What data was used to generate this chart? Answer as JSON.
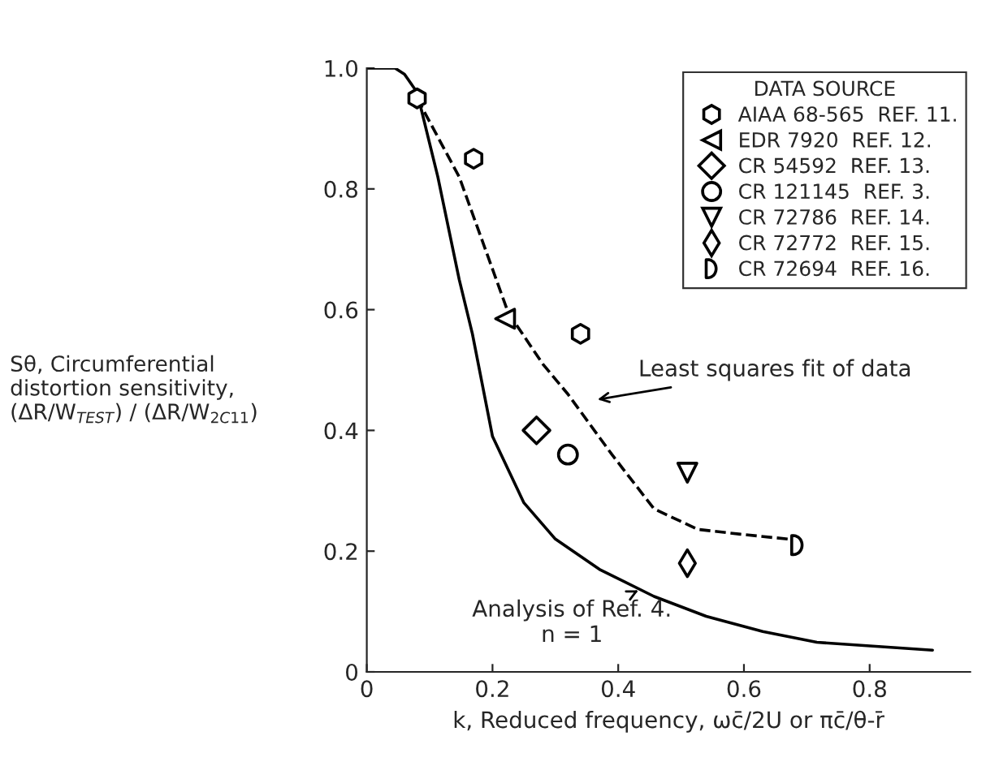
{
  "chart_data": {
    "type": "scatter",
    "xlabel": "k, Reduced frequency, ωc̄/2U or πc̄/θ-r̄",
    "ylabel": "Sθ, Circumferential\ndistortion sensitivity,\n(ΔR/W$_{TEST}$) / (ΔR/W$_{2C11}$)",
    "legend_title": "DATA SOURCE",
    "legend": "top right",
    "grid": false,
    "xlim": [
      0,
      0.96
    ],
    "xticks": [
      0,
      0.2,
      0.4,
      0.6,
      0.8
    ],
    "ylim": [
      0,
      1.0
    ],
    "yticks": [
      0,
      0.2,
      0.4,
      0.6,
      0.8,
      {
        "value": 1.0,
        "label": "1.0"
      }
    ],
    "series": [
      {
        "name": "AIAA 68-565  REF. 11.",
        "color": "#000000",
        "x": [
          0.08,
          0.17,
          0.34
        ],
        "values": [
          0.95,
          0.85,
          0.56
        ]
      },
      {
        "name": "EDR 7920  REF. 12.",
        "color": "#000000",
        "x": [
          0.22
        ],
        "values": [
          0.585
        ]
      },
      {
        "name": "CR 54592  REF. 13.",
        "color": "#000000",
        "x": [
          0.27
        ],
        "values": [
          0.4
        ]
      },
      {
        "name": "CR 121145  REF. 3.",
        "color": "#000000",
        "x": [
          0.32
        ],
        "values": [
          0.36
        ]
      },
      {
        "name": "CR 72786  REF. 14.",
        "color": "#000000",
        "x": [
          0.51
        ],
        "values": [
          0.33
        ]
      },
      {
        "name": "CR 72772  REF. 15.",
        "color": "#000000",
        "x": [
          0.51
        ],
        "values": [
          0.18
        ]
      },
      {
        "name": "CR 72694  REF. 16.",
        "color": "#000000",
        "x": [
          0.685
        ],
        "values": [
          0.21
        ]
      },
      {
        "type": "line",
        "line_style": "dashed",
        "color": "#000000",
        "x": [
          0.08,
          0.147,
          0.225,
          0.28,
          0.32,
          0.39,
          0.457,
          0.527,
          0.595,
          0.67
        ],
        "values": [
          0.95,
          0.82,
          0.595,
          0.51,
          0.46,
          0.36,
          0.27,
          0.236,
          0.228,
          0.22
        ]
      },
      {
        "type": "line",
        "line_style": "solid",
        "color": "#000000",
        "x": [
          0,
          0.045,
          0.06,
          0.08,
          0.113,
          0.147,
          0.168,
          0.2,
          0.25,
          0.3,
          0.37,
          0.457,
          0.54,
          0.63,
          0.716,
          0.9
        ],
        "values": [
          1.0,
          1.0,
          0.99,
          0.96,
          0.82,
          0.65,
          0.56,
          0.39,
          0.28,
          0.22,
          0.17,
          0.125,
          0.092,
          0.067,
          0.049,
          0.036
        ]
      }
    ],
    "annotations": [
      "Least squares fit of data",
      "Analysis of Ref. 4.\nn = 1"
    ]
  }
}
